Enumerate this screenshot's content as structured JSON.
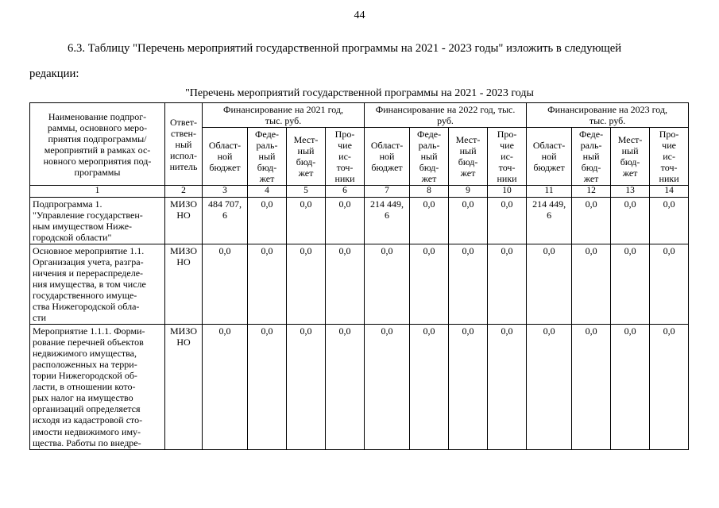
{
  "page": {
    "number": "44",
    "intro": "6.3. Таблицу \"Перечень мероприятий государственной программы на 2021 - 2023 годы\" изложить в следующей\nредакции:",
    "table_title": "\"Перечень мероприятий государственной программы на 2021 - 2023 годы"
  },
  "table": {
    "header": {
      "name_column": "Наименование подпрог-\nраммы, основного меро-\nприятия подпрограммы/\nмероприятий в рамках ос-\nновного мероприятия под-\nпрограммы",
      "executor_column": "Ответ-\nствен-\nный\nиспол-\nнитель",
      "groups": [
        "Финансирование на 2021 год,\nтыс. руб.",
        "Финансирование на 2022 год, тыс.\nруб.",
        "Финансирование на 2023 год,\nтыс. руб."
      ],
      "subcolumns": [
        "Област-\nной\nбюджет",
        "Феде-\nраль-\nный\nбюд-\nжет",
        "Мест-\nный\nбюд-\nжет",
        "Про-\nчие\nис-\nточ-\nники"
      ]
    },
    "column_numbers": [
      "1",
      "2",
      "3",
      "4",
      "5",
      "6",
      "7",
      "8",
      "9",
      "10",
      "11",
      "12",
      "13",
      "14"
    ],
    "rows": [
      {
        "name": "Подпрограмма 1.\n\"Управление государствен-\nным имуществом Ниже-\nгородской области\"",
        "executor": "МИЗО\nНО",
        "values": [
          "484 707,\n6",
          "0,0",
          "0,0",
          "0,0",
          "214 449,\n6",
          "0,0",
          "0,0",
          "0,0",
          "214 449,\n6",
          "0,0",
          "0,0",
          "0,0"
        ]
      },
      {
        "name": "Основное мероприятие 1.1.\nОрганизация учета, разгра-\nничения и перераспределе-\nния имущества, в том числе\nгосударственного имуще-\nства Нижегородской обла-\nсти",
        "executor": "МИЗО\nНО",
        "values": [
          "0,0",
          "0,0",
          "0,0",
          "0,0",
          "0,0",
          "0,0",
          "0,0",
          "0,0",
          "0,0",
          "0,0",
          "0,0",
          "0,0"
        ]
      },
      {
        "name": "Мероприятие 1.1.1. Форми-\nрование перечней объектов\nнедвижимого имущества,\nрасположенных на терри-\nтории Нижегородской об-\nласти, в отношении кото-\nрых налог на имущество\nорганизаций определяется\nисходя из кадастровой сто-\nимости недвижимого иму-\nщества. Работы по внедре-",
        "executor": "МИЗО\nНО",
        "values": [
          "0,0",
          "0,0",
          "0,0",
          "0,0",
          "0,0",
          "0,0",
          "0,0",
          "0,0",
          "0,0",
          "0,0",
          "0,0",
          "0,0"
        ]
      }
    ]
  }
}
